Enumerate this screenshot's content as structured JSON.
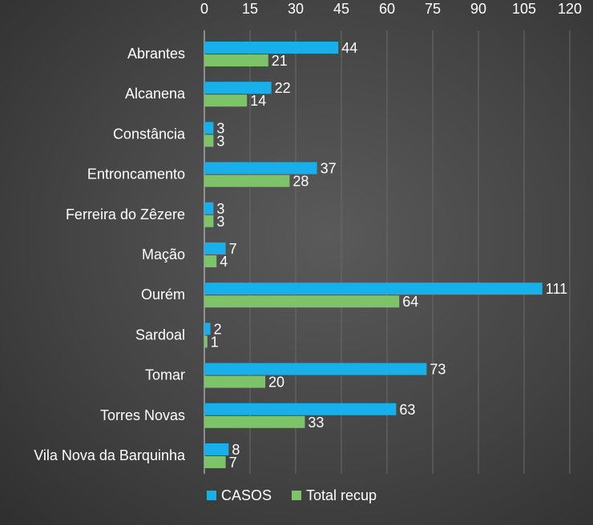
{
  "chart_data": {
    "type": "bar",
    "orientation": "horizontal",
    "categories": [
      "Abrantes",
      "Alcanena",
      "Constância",
      "Entroncamento",
      "Ferreira do Zêzere",
      "Mação",
      "Ourém",
      "Sardoal",
      "Tomar",
      "Torres Novas",
      "Vila Nova da Barquinha"
    ],
    "series": [
      {
        "name": "CASOS",
        "color": "#17b0ea",
        "values": [
          44,
          22,
          3,
          37,
          3,
          7,
          111,
          2,
          73,
          63,
          8
        ]
      },
      {
        "name": "Total recup",
        "color": "#7dc36a",
        "values": [
          21,
          14,
          3,
          28,
          3,
          4,
          64,
          1,
          20,
          33,
          7
        ]
      }
    ],
    "xticks": [
      0,
      15,
      30,
      45,
      60,
      75,
      90,
      105,
      120
    ],
    "xlim": [
      0,
      120
    ],
    "x_axis_position": "top",
    "grid": true,
    "legend_position": "bottom",
    "title": "",
    "xlabel": "",
    "ylabel": ""
  }
}
